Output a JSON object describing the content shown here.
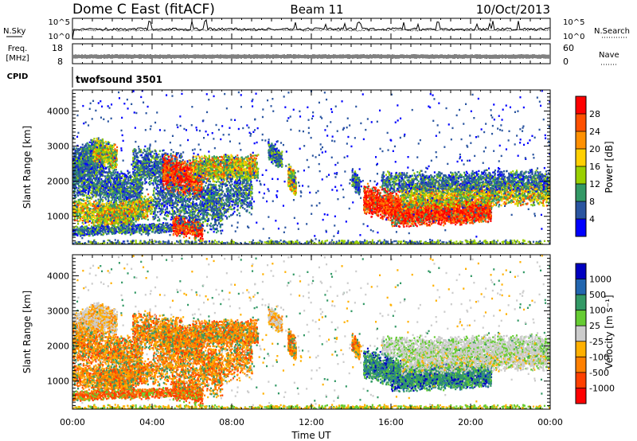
{
  "header": {
    "station": "Dome C East (fitACF)",
    "beam": "Beam 11",
    "date": "10/Oct/2013"
  },
  "aux_labels": {
    "nsky": "N.Sky",
    "freq_line1": "Freq.",
    "freq_line2": "[MHz]",
    "cpid": "CPID",
    "nsearch": "N.Search",
    "nave": "Nave",
    "cpid_value": "twofsound 3501",
    "nsky_ticks": [
      "10^5",
      "10^0"
    ],
    "nsearch_ticks": [
      "10^5",
      "10^0"
    ],
    "freq_ticks": [
      "18",
      "8"
    ],
    "nave_ticks": [
      "60",
      "0"
    ]
  },
  "chart_data": [
    {
      "type": "heatmap",
      "panel": "power",
      "ylabel": "Slant Range [km]",
      "ylim": [
        200,
        4600
      ],
      "yticks": [
        1000,
        2000,
        3000,
        4000
      ],
      "xlim": [
        0,
        24
      ],
      "colorbar_label": "Power [dB]",
      "colorbar_ticks": [
        "28",
        "24",
        "20",
        "16",
        "12",
        "8",
        "4"
      ],
      "colors": [
        "#ff0000",
        "#ff5000",
        "#ff9000",
        "#ffd000",
        "#9ad000",
        "#339966",
        "#2a55a0",
        "#0000ff"
      ]
    },
    {
      "type": "heatmap",
      "panel": "velocity",
      "ylabel": "Slant Range [km]",
      "ylim": [
        200,
        4600
      ],
      "yticks": [
        1000,
        2000,
        3000,
        4000
      ],
      "xlim": [
        0,
        24
      ],
      "xlabel": "Time UT",
      "xticks": [
        "00:00",
        "04:00",
        "08:00",
        "12:00",
        "16:00",
        "20:00",
        "00:00"
      ],
      "colorbar_label": "Velocity [m s⁻¹]",
      "colorbar_ticks": [
        "1000",
        "500",
        "100",
        "25",
        "-25",
        "-100",
        "-500",
        "-1000"
      ],
      "colors": [
        "#0000c0",
        "#2266b0",
        "#339966",
        "#66cc33",
        "#cccccc",
        "#ffb000",
        "#ff8000",
        "#ff4000",
        "#ff0000"
      ]
    }
  ]
}
